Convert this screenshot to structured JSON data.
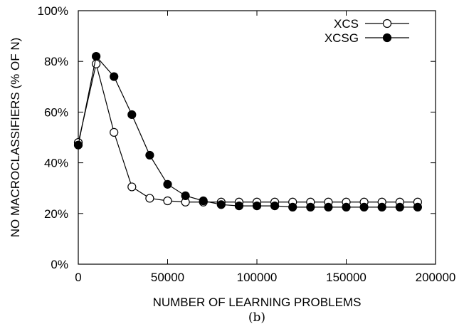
{
  "chart_data": {
    "type": "line",
    "caption": "(b)",
    "xlabel": "NUMBER OF LEARNING PROBLEMS",
    "ylabel": "NO MACROCLASSIFIERS (% OF N)",
    "xlim": [
      0,
      200000
    ],
    "ylim": [
      0,
      100
    ],
    "x_ticks": [
      0,
      50000,
      100000,
      150000,
      200000
    ],
    "x_tick_labels": [
      "0",
      "50000",
      "100000",
      "150000",
      "200000"
    ],
    "y_ticks": [
      0,
      20,
      40,
      60,
      80,
      100
    ],
    "y_tick_labels": [
      "0%",
      "20%",
      "40%",
      "60%",
      "80%",
      "100%"
    ],
    "grid": false,
    "legend_position": "top-right",
    "x": [
      0,
      10000,
      20000,
      30000,
      40000,
      50000,
      60000,
      70000,
      80000,
      90000,
      100000,
      110000,
      120000,
      130000,
      140000,
      150000,
      160000,
      170000,
      180000,
      190000
    ],
    "series": [
      {
        "name": "XCS",
        "marker": "open-circle",
        "color": "#000000",
        "values": [
          48,
          79,
          52,
          30.5,
          26,
          25,
          24.5,
          24.5,
          24.5,
          24.5,
          24.5,
          24.5,
          24.5,
          24.5,
          24.5,
          24.5,
          24.5,
          24.5,
          24.5,
          24.5
        ]
      },
      {
        "name": "XCSG",
        "marker": "filled-circle",
        "color": "#000000",
        "values": [
          47,
          82,
          74,
          59,
          43,
          31.5,
          27,
          25,
          23.5,
          23,
          23,
          23,
          22.5,
          22.5,
          22.5,
          22.5,
          22.5,
          22.5,
          22.5,
          22.5
        ]
      }
    ]
  }
}
